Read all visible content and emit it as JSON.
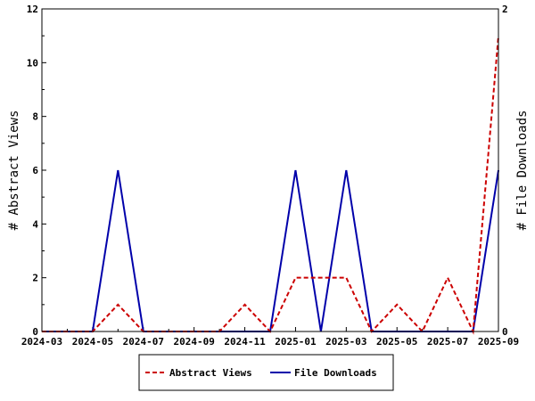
{
  "chart_data": {
    "type": "line",
    "x": [
      "2024-03",
      "2024-04",
      "2024-05",
      "2024-06",
      "2024-07",
      "2024-08",
      "2024-09",
      "2024-10",
      "2024-11",
      "2024-12",
      "2025-01",
      "2025-02",
      "2025-03",
      "2025-04",
      "2025-05",
      "2025-06",
      "2025-07",
      "2025-08",
      "2025-09"
    ],
    "x_tick_labels": [
      "2024-03",
      "2024-05",
      "2024-07",
      "2024-09",
      "2024-11",
      "2025-01",
      "2025-03",
      "2025-05",
      "2025-07",
      "2025-09"
    ],
    "series": [
      {
        "name": "Abstract Views",
        "axis": "left",
        "color": "#cc0000",
        "line_style": "dashed",
        "values": [
          0,
          0,
          0,
          1,
          0,
          0,
          0,
          0,
          1,
          0,
          2,
          2,
          2,
          0,
          1,
          0,
          2,
          0,
          11
        ]
      },
      {
        "name": "File Downloads",
        "axis": "right",
        "color": "#0000aa",
        "line_style": "solid",
        "values": [
          0,
          0,
          0,
          1,
          0,
          0,
          0,
          0,
          0,
          0,
          1,
          0,
          1,
          0,
          0,
          0,
          0,
          0,
          1
        ]
      }
    ],
    "ylabel": "# Abstract Views",
    "ylabel_right": "# File Downloads",
    "ylim": [
      0,
      12
    ],
    "ylim_right": [
      0,
      2
    ],
    "y_ticks": [
      "0",
      "2",
      "4",
      "6",
      "8",
      "10",
      "12"
    ],
    "y_ticks_right": [
      "0",
      "2"
    ],
    "grid": false,
    "legend_placement": "bottom-center"
  }
}
